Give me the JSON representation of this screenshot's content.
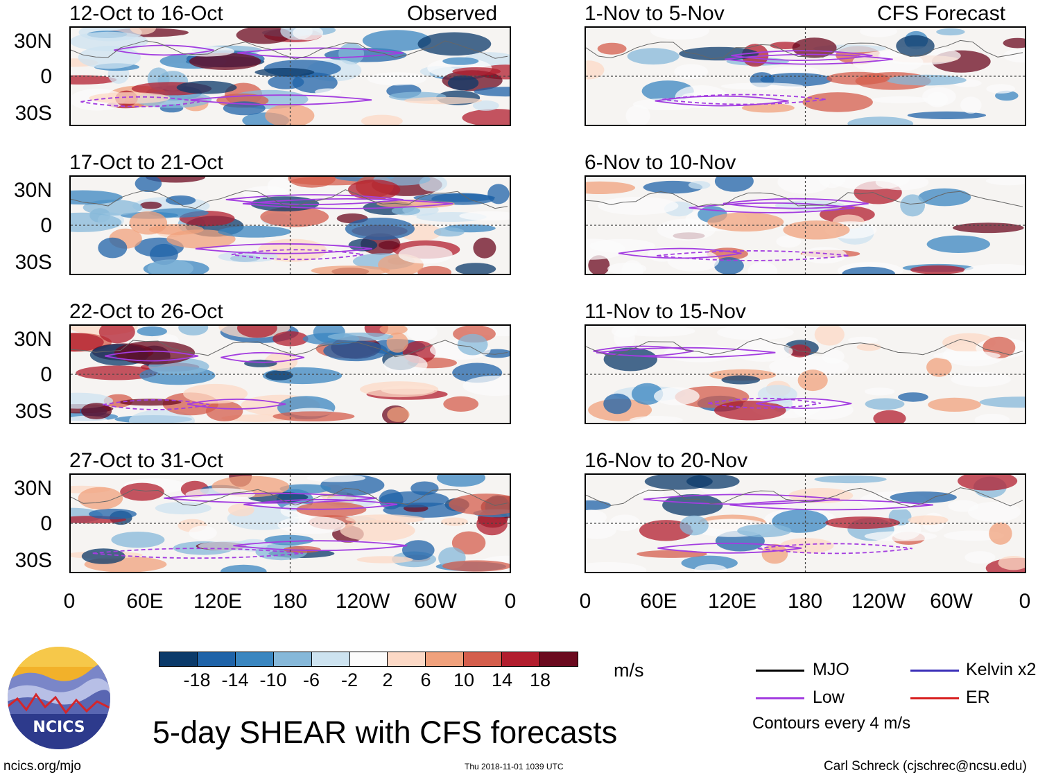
{
  "panels": {
    "left": [
      {
        "period": "12-Oct to 16-Oct",
        "label": "Observed"
      },
      {
        "period": "17-Oct to 21-Oct",
        "label": ""
      },
      {
        "period": "22-Oct to 26-Oct",
        "label": ""
      },
      {
        "period": "27-Oct to 31-Oct",
        "label": ""
      }
    ],
    "right": [
      {
        "period": "1-Nov to 5-Nov",
        "label": "CFS Forecast"
      },
      {
        "period": "6-Nov to 10-Nov",
        "label": ""
      },
      {
        "period": "11-Nov to 15-Nov",
        "label": ""
      },
      {
        "period": "16-Nov to 20-Nov",
        "label": ""
      }
    ]
  },
  "y_axis": [
    "30N",
    "0",
    "30S"
  ],
  "x_axis": [
    "0",
    "60E",
    "120E",
    "180",
    "120W",
    "60W",
    "0"
  ],
  "colorbar": {
    "labels": [
      "-18",
      "-14",
      "-10",
      "-6",
      "-2",
      "2",
      "6",
      "10",
      "14",
      "18"
    ],
    "colors": [
      "#0b3a6a",
      "#1f63a8",
      "#3a86c0",
      "#86b8d9",
      "#cde3f0",
      "#fbfbfb",
      "#fcd9c6",
      "#f0a17c",
      "#d45e4c",
      "#b21e2e",
      "#6b0a1f"
    ],
    "units": "m/s"
  },
  "legend": {
    "mjo": "MJO",
    "kelvin": "Kelvin x2",
    "low": "Low",
    "er": "ER",
    "contours": "Contours every 4 m/s",
    "colors": {
      "mjo": "#000000",
      "kelvin": "#3a2fb8",
      "low": "#a33de0",
      "er": "#d82020"
    }
  },
  "footer": {
    "logo_text": "NCICS",
    "title": "5-day SHEAR with CFS forecasts",
    "url": "ncics.org/mjo",
    "timestamp": "Thu 2018-11-01 1039 UTC",
    "credit": "Carl Schreck (cjschrec@ncsu.edu)"
  }
}
